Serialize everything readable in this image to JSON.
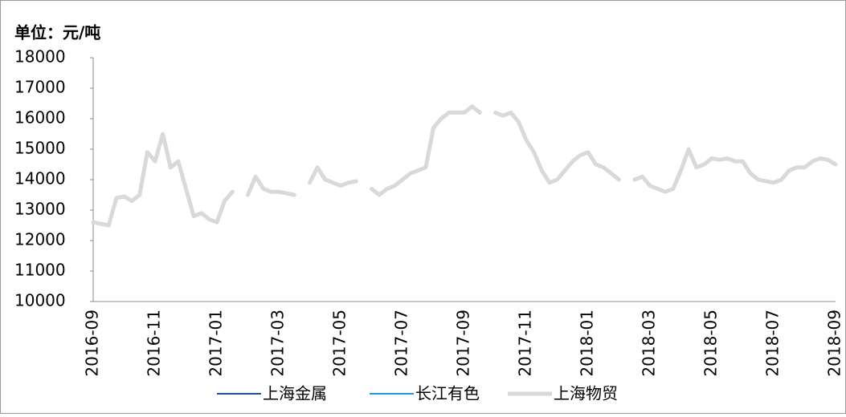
{
  "chart_data": {
    "type": "line",
    "title": "单位：元/吨",
    "categories": [
      "2016-09",
      null,
      null,
      null,
      null,
      null,
      null,
      null,
      "2016-11",
      null,
      null,
      null,
      null,
      null,
      null,
      null,
      "2017-01",
      null,
      null,
      null,
      null,
      null,
      null,
      null,
      "2017-03",
      null,
      null,
      null,
      null,
      null,
      null,
      null,
      "2017-05",
      null,
      null,
      null,
      null,
      null,
      null,
      null,
      "2017-07",
      null,
      null,
      null,
      null,
      null,
      null,
      null,
      "2017-09",
      null,
      null,
      null,
      null,
      null,
      null,
      null,
      "2017-11",
      null,
      null,
      null,
      null,
      null,
      null,
      null,
      "2018-01",
      null,
      null,
      null,
      null,
      null,
      null,
      null,
      "2018-03",
      null,
      null,
      null,
      null,
      null,
      null,
      null,
      "2018-05",
      null,
      null,
      null,
      null,
      null,
      null,
      null,
      "2018-07",
      null,
      null,
      null,
      null,
      null,
      null,
      null,
      "2018-09"
    ],
    "series": [
      {
        "name": "上海金属",
        "color": "#1f4e99",
        "width": 2,
        "values": [
          12600,
          12550,
          12500,
          13400,
          13450,
          13300,
          13500,
          14900,
          14600,
          15500,
          14400,
          14600,
          13700,
          12800,
          12900,
          12700,
          12600,
          13300,
          13600,
          null,
          13500,
          14100,
          13700,
          13600,
          13600,
          13550,
          13500,
          null,
          13900,
          14400,
          14000,
          13900,
          13800,
          13900,
          13950,
          null,
          13700,
          13500,
          13700,
          13800,
          14000,
          14200,
          14300,
          14400,
          15700,
          16000,
          16200,
          16200,
          16200,
          16400,
          16200,
          null,
          16200,
          16100,
          16200,
          15900,
          15300,
          14900,
          14300,
          13900,
          14000,
          14300,
          14600,
          14800,
          14900,
          14500,
          14400,
          14200,
          14000,
          null,
          14000,
          14100,
          13800,
          13700,
          13600,
          13700,
          14300,
          15000,
          14400,
          14500,
          14700,
          14650,
          14700,
          14600,
          14600,
          14200,
          14000,
          13950,
          13900,
          14000,
          14300,
          14400,
          14400,
          14600,
          14700,
          14650,
          14500
        ]
      },
      {
        "name": "长江有色",
        "color": "#1e9ad6",
        "width": 2,
        "values": [
          12600,
          12550,
          12500,
          13400,
          13450,
          13300,
          13500,
          14900,
          14600,
          15500,
          14400,
          14600,
          13700,
          12800,
          12900,
          12700,
          12600,
          13300,
          13600,
          null,
          13500,
          14100,
          13700,
          13600,
          13600,
          13550,
          13500,
          null,
          13900,
          14400,
          14000,
          13900,
          13800,
          13900,
          13950,
          null,
          13700,
          13500,
          13700,
          13800,
          14000,
          14200,
          14300,
          14400,
          15700,
          16000,
          16200,
          16200,
          16200,
          16400,
          16200,
          null,
          16200,
          16100,
          16200,
          15900,
          15300,
          14900,
          14300,
          13900,
          14000,
          14300,
          14600,
          14800,
          14900,
          14500,
          14400,
          14200,
          14000,
          null,
          14000,
          14100,
          13800,
          13700,
          13600,
          13700,
          14300,
          15000,
          14400,
          14500,
          14700,
          14650,
          14700,
          14600,
          14600,
          14200,
          14000,
          13950,
          13900,
          14000,
          14300,
          14400,
          14400,
          14600,
          14700,
          14650,
          14500
        ]
      },
      {
        "name": "上海物贸",
        "color": "#d9d9d9",
        "width": 5,
        "values": [
          12600,
          12550,
          12500,
          13400,
          13450,
          13300,
          13500,
          14900,
          14600,
          15500,
          14400,
          14600,
          13700,
          12800,
          12900,
          12700,
          12600,
          13300,
          13600,
          null,
          13500,
          14100,
          13700,
          13600,
          13600,
          13550,
          13500,
          null,
          13900,
          14400,
          14000,
          13900,
          13800,
          13900,
          13950,
          null,
          13700,
          13500,
          13700,
          13800,
          14000,
          14200,
          14300,
          14400,
          15700,
          16000,
          16200,
          16200,
          16200,
          16400,
          16200,
          null,
          16200,
          16100,
          16200,
          15900,
          15300,
          14900,
          14300,
          13900,
          14000,
          14300,
          14600,
          14800,
          14900,
          14500,
          14400,
          14200,
          14000,
          null,
          14000,
          14100,
          13800,
          13700,
          13600,
          13700,
          14300,
          15000,
          14400,
          14500,
          14700,
          14650,
          14700,
          14600,
          14600,
          14200,
          14000,
          13950,
          13900,
          14000,
          14300,
          14400,
          14400,
          14600,
          14700,
          14650,
          14500
        ]
      }
    ],
    "ylim": [
      10000,
      18000
    ],
    "yticks": [
      10000,
      11000,
      12000,
      13000,
      14000,
      15000,
      16000,
      17000,
      18000
    ],
    "grid": false,
    "legend": "bottom"
  }
}
